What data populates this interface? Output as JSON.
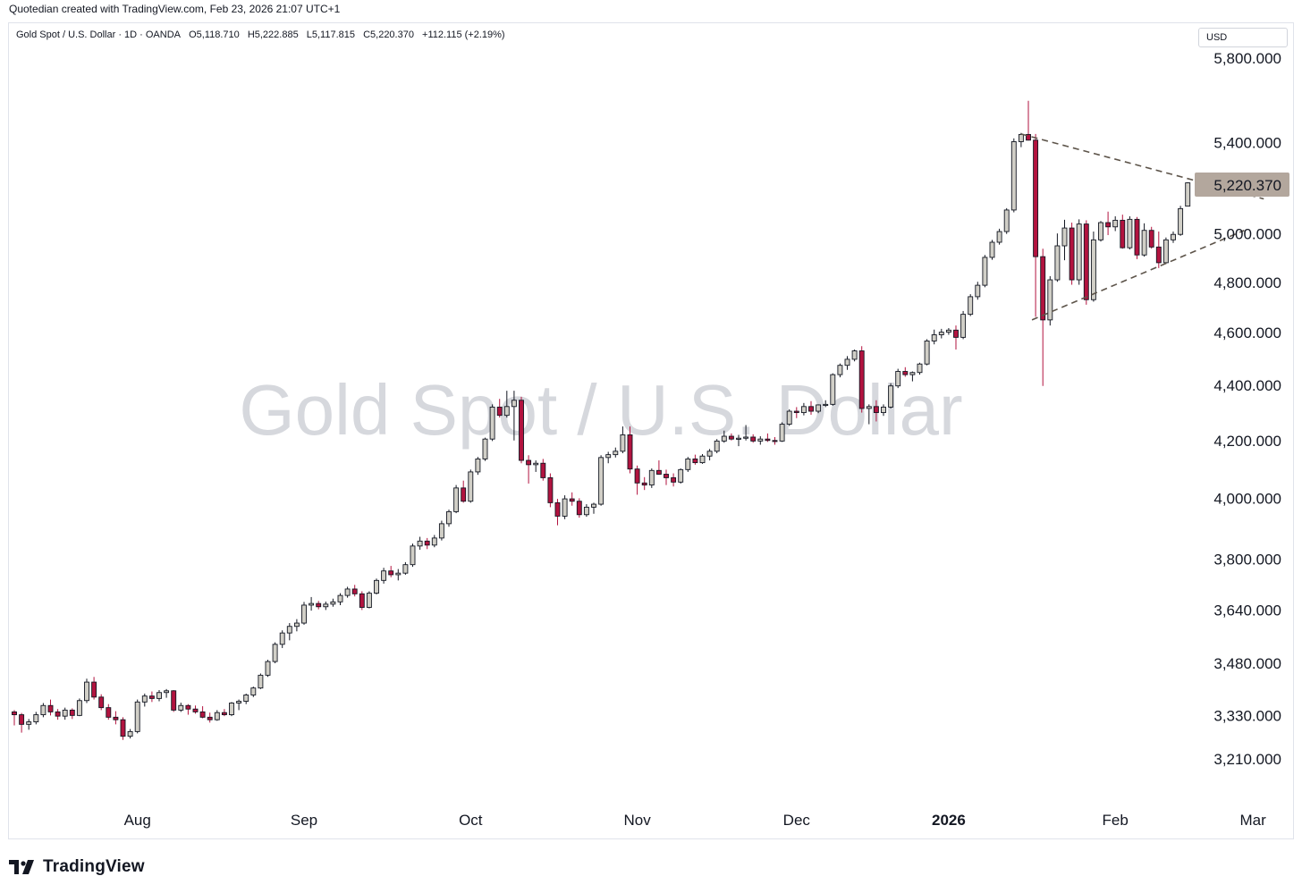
{
  "header": {
    "note": "Quotedian created with TradingView.com, Feb 23, 2026 21:07 UTC+1"
  },
  "legend": {
    "symbol": "Gold Spot / U.S. Dollar · 1D · OANDA",
    "open": "O5,118.710",
    "high": "H5,222.885",
    "low": "L5,117.815",
    "close": "C5,220.370",
    "change": "+112.115 (+2.19%)"
  },
  "currency_label": "USD",
  "watermark": "Gold Spot / U.S. Dollar",
  "last_price_label": "5,220.370",
  "footer": {
    "brand": "TradingView"
  },
  "colors": {
    "up_fill": "#d1cfc7",
    "down_fill": "#b2133f",
    "outline": "#131722",
    "last_price_bg": "#b3a79d",
    "trendline": "#5d544a"
  },
  "chart_data": {
    "type": "candlestick",
    "title": "Gold Spot / U.S. Dollar",
    "interval": "1D",
    "source": "OANDA",
    "y_axis": {
      "scale": "log",
      "ylim": [
        3110,
        5900
      ],
      "ticks": [
        3210,
        3330,
        3480,
        3640,
        3800,
        4000,
        4200,
        4400,
        4600,
        4800,
        5000,
        5400,
        5800
      ],
      "tick_labels": [
        "3,210.000",
        "3,330.000",
        "3,480.000",
        "3,640.000",
        "3,800.000",
        "4,000.000",
        "4,200.000",
        "4,400.000",
        "4,600.000",
        "4,800.000",
        "5,000.000",
        "5,400.000",
        "5,800.000"
      ]
    },
    "x_axis": {
      "labels": [
        "Aug",
        "Sep",
        "Oct",
        "Nov",
        "Dec",
        "2026",
        "Feb",
        "Mar"
      ],
      "label_bar_index": [
        17,
        40,
        63,
        86,
        108,
        129,
        152,
        171
      ]
    },
    "last_price": 5220.37,
    "candles": [
      [
        3340,
        3345,
        3302,
        3332
      ],
      [
        3332,
        3337,
        3282,
        3305
      ],
      [
        3305,
        3320,
        3290,
        3312
      ],
      [
        3312,
        3340,
        3305,
        3332
      ],
      [
        3332,
        3365,
        3325,
        3358
      ],
      [
        3358,
        3375,
        3330,
        3340
      ],
      [
        3340,
        3348,
        3318,
        3328
      ],
      [
        3328,
        3352,
        3318,
        3345
      ],
      [
        3345,
        3350,
        3320,
        3330
      ],
      [
        3330,
        3378,
        3328,
        3372
      ],
      [
        3372,
        3435,
        3365,
        3425
      ],
      [
        3425,
        3440,
        3375,
        3382
      ],
      [
        3382,
        3390,
        3345,
        3352
      ],
      [
        3352,
        3362,
        3318,
        3325
      ],
      [
        3325,
        3342,
        3305,
        3318
      ],
      [
        3318,
        3325,
        3262,
        3272
      ],
      [
        3272,
        3292,
        3266,
        3285
      ],
      [
        3285,
        3375,
        3280,
        3368
      ],
      [
        3368,
        3392,
        3355,
        3385
      ],
      [
        3385,
        3398,
        3368,
        3378
      ],
      [
        3378,
        3402,
        3370,
        3395
      ],
      [
        3395,
        3405,
        3380,
        3400
      ],
      [
        3400,
        3402,
        3340,
        3345
      ],
      [
        3345,
        3366,
        3340,
        3358
      ],
      [
        3358,
        3362,
        3332,
        3348
      ],
      [
        3348,
        3358,
        3335,
        3340
      ],
      [
        3340,
        3356,
        3322,
        3325
      ],
      [
        3325,
        3338,
        3310,
        3318
      ],
      [
        3318,
        3345,
        3315,
        3338
      ],
      [
        3338,
        3348,
        3328,
        3332
      ],
      [
        3332,
        3368,
        3328,
        3365
      ],
      [
        3365,
        3375,
        3345,
        3370
      ],
      [
        3370,
        3392,
        3362,
        3388
      ],
      [
        3388,
        3412,
        3382,
        3408
      ],
      [
        3408,
        3450,
        3405,
        3445
      ],
      [
        3445,
        3490,
        3440,
        3485
      ],
      [
        3485,
        3542,
        3480,
        3536
      ],
      [
        3536,
        3578,
        3525,
        3570
      ],
      [
        3570,
        3600,
        3548,
        3590
      ],
      [
        3590,
        3612,
        3575,
        3600
      ],
      [
        3600,
        3665,
        3595,
        3655
      ],
      [
        3655,
        3680,
        3638,
        3660
      ],
      [
        3660,
        3668,
        3642,
        3650
      ],
      [
        3650,
        3666,
        3640,
        3658
      ],
      [
        3658,
        3675,
        3650,
        3665
      ],
      [
        3665,
        3692,
        3655,
        3685
      ],
      [
        3685,
        3712,
        3678,
        3705
      ],
      [
        3705,
        3718,
        3682,
        3690
      ],
      [
        3690,
        3698,
        3640,
        3648
      ],
      [
        3648,
        3698,
        3645,
        3692
      ],
      [
        3692,
        3738,
        3688,
        3732
      ],
      [
        3732,
        3772,
        3722,
        3762
      ],
      [
        3762,
        3778,
        3742,
        3750
      ],
      [
        3750,
        3768,
        3732,
        3755
      ],
      [
        3755,
        3790,
        3750,
        3782
      ],
      [
        3782,
        3850,
        3775,
        3842
      ],
      [
        3842,
        3872,
        3830,
        3858
      ],
      [
        3858,
        3868,
        3832,
        3845
      ],
      [
        3845,
        3878,
        3838,
        3868
      ],
      [
        3868,
        3925,
        3860,
        3915
      ],
      [
        3915,
        3962,
        3905,
        3955
      ],
      [
        3955,
        4045,
        3950,
        4035
      ],
      [
        4035,
        4060,
        3985,
        3990
      ],
      [
        3990,
        4098,
        3985,
        4090
      ],
      [
        4090,
        4142,
        4080,
        4135
      ],
      [
        4135,
        4210,
        4128,
        4205
      ],
      [
        4205,
        4330,
        4198,
        4320
      ],
      [
        4320,
        4350,
        4282,
        4290
      ],
      [
        4290,
        4380,
        4282,
        4322
      ],
      [
        4322,
        4380,
        4200,
        4345
      ],
      [
        4345,
        4358,
        4120,
        4130
      ],
      [
        4130,
        4148,
        4050,
        4115
      ],
      [
        4115,
        4130,
        4090,
        4120
      ],
      [
        4120,
        4135,
        4060,
        4070
      ],
      [
        4070,
        4085,
        3970,
        3985
      ],
      [
        3985,
        3998,
        3910,
        3940
      ],
      [
        3940,
        4010,
        3930,
        3998
      ],
      [
        3998,
        4020,
        3975,
        3990
      ],
      [
        3990,
        4000,
        3935,
        3945
      ],
      [
        3945,
        3980,
        3938,
        3970
      ],
      [
        3970,
        3985,
        3948,
        3980
      ],
      [
        3980,
        4148,
        3975,
        4140
      ],
      [
        4140,
        4160,
        4120,
        4150
      ],
      [
        4150,
        4175,
        4140,
        4162
      ],
      [
        4162,
        4250,
        4155,
        4220
      ],
      [
        4220,
        4250,
        4085,
        4100
      ],
      [
        4100,
        4112,
        4012,
        4052
      ],
      [
        4052,
        4072,
        4028,
        4045
      ],
      [
        4045,
        4102,
        4035,
        4095
      ],
      [
        4095,
        4130,
        4080,
        4082
      ],
      [
        4082,
        4098,
        4045,
        4070
      ],
      [
        4070,
        4085,
        4040,
        4055
      ],
      [
        4055,
        4102,
        4050,
        4098
      ],
      [
        4098,
        4142,
        4090,
        4135
      ],
      [
        4135,
        4150,
        4115,
        4122
      ],
      [
        4122,
        4152,
        4118,
        4145
      ],
      [
        4145,
        4170,
        4130,
        4162
      ],
      [
        4162,
        4205,
        4155,
        4198
      ],
      [
        4198,
        4235,
        4192,
        4215
      ],
      [
        4215,
        4225,
        4200,
        4205
      ],
      [
        4205,
        4220,
        4180,
        4208
      ],
      [
        4208,
        4255,
        4200,
        4212
      ],
      [
        4212,
        4222,
        4192,
        4198
      ],
      [
        4198,
        4215,
        4185,
        4205
      ],
      [
        4205,
        4225,
        4195,
        4200
      ],
      [
        4200,
        4212,
        4185,
        4198
      ],
      [
        4198,
        4265,
        4195,
        4258
      ],
      [
        4258,
        4312,
        4252,
        4305
      ],
      [
        4305,
        4320,
        4280,
        4300
      ],
      [
        4300,
        4335,
        4290,
        4322
      ],
      [
        4322,
        4342,
        4292,
        4305
      ],
      [
        4305,
        4330,
        4298,
        4328
      ],
      [
        4328,
        4345,
        4320,
        4330
      ],
      [
        4330,
        4445,
        4325,
        4440
      ],
      [
        4440,
        4482,
        4430,
        4475
      ],
      [
        4475,
        4510,
        4458,
        4498
      ],
      [
        4498,
        4535,
        4490,
        4530
      ],
      [
        4530,
        4548,
        4300,
        4315
      ],
      [
        4315,
        4330,
        4258,
        4322
      ],
      [
        4322,
        4345,
        4268,
        4300
      ],
      [
        4300,
        4330,
        4288,
        4320
      ],
      [
        4320,
        4408,
        4315,
        4398
      ],
      [
        4398,
        4462,
        4390,
        4452
      ],
      [
        4452,
        4468,
        4432,
        4440
      ],
      [
        4440,
        4452,
        4415,
        4448
      ],
      [
        4448,
        4485,
        4440,
        4480
      ],
      [
        4480,
        4575,
        4475,
        4568
      ],
      [
        4568,
        4612,
        4555,
        4592
      ],
      [
        4592,
        4615,
        4578,
        4602
      ],
      [
        4602,
        4618,
        4592,
        4610
      ],
      [
        4610,
        4628,
        4535,
        4582
      ],
      [
        4582,
        4685,
        4575,
        4672
      ],
      [
        4672,
        4752,
        4665,
        4742
      ],
      [
        4742,
        4802,
        4730,
        4788
      ],
      [
        4788,
        4912,
        4780,
        4902
      ],
      [
        4902,
        4975,
        4892,
        4965
      ],
      [
        4965,
        5022,
        4955,
        5010
      ],
      [
        5010,
        5110,
        5000,
        5102
      ],
      [
        5102,
        5420,
        5092,
        5405
      ],
      [
        5405,
        5445,
        5380,
        5438
      ],
      [
        5438,
        5595,
        5410,
        5412
      ],
      [
        5412,
        5440,
        4662,
        4905
      ],
      [
        4905,
        4938,
        4398,
        4650
      ],
      [
        4650,
        4825,
        4628,
        4810
      ],
      [
        4810,
        5002,
        4802,
        4950
      ],
      [
        4950,
        5060,
        4890,
        5025
      ],
      [
        5025,
        5048,
        4790,
        4810
      ],
      [
        4810,
        5062,
        4790,
        5042
      ],
      [
        5042,
        5058,
        4710,
        4730
      ],
      [
        4730,
        5010,
        4722,
        4975
      ],
      [
        4975,
        5055,
        4968,
        5048
      ],
      [
        5048,
        5095,
        4995,
        5030
      ],
      [
        5030,
        5075,
        5012,
        5058
      ],
      [
        5058,
        5082,
        4938,
        4942
      ],
      [
        4942,
        5075,
        4935,
        5062
      ],
      [
        5062,
        5072,
        4895,
        4912
      ],
      [
        4912,
        5045,
        4905,
        5015
      ],
      [
        5015,
        5030,
        4938,
        4945
      ],
      [
        4945,
        5010,
        4858,
        4880
      ],
      [
        4880,
        4985,
        4875,
        4975
      ],
      [
        4975,
        5010,
        4962,
        4998
      ],
      [
        4998,
        5120,
        4992,
        5108
      ],
      [
        5118.71,
        5222.885,
        5117.815,
        5220.37
      ]
    ]
  }
}
